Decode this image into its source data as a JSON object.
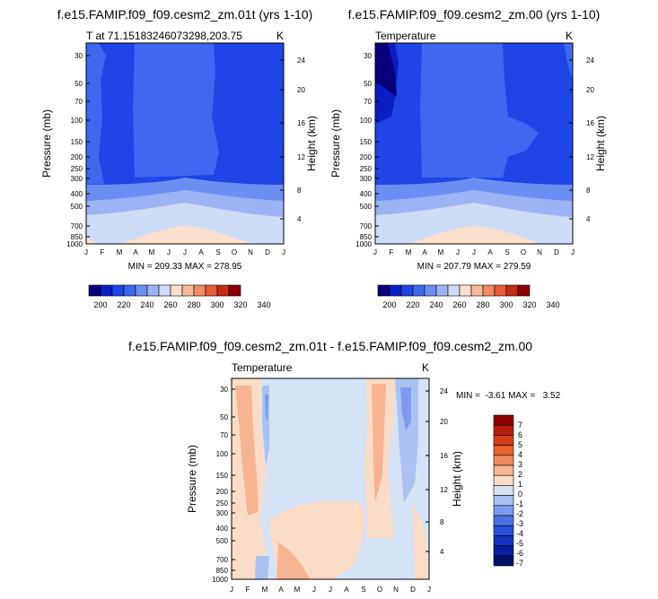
{
  "colors": {
    "palette13": [
      "#08007a",
      "#0a1ec4",
      "#1f45e6",
      "#3e68f0",
      "#6b8ef2",
      "#9cb3f5",
      "#cfdcf7",
      "#fbe1cd",
      "#f8b99a",
      "#f28a63",
      "#e85a3a",
      "#c82a18",
      "#8b0000"
    ],
    "diff_palette": [
      "#8b0000",
      "#b81d0d",
      "#d63d1c",
      "#e8622f",
      "#f08a5e",
      "#f6b492",
      "#fbdcc6",
      "#d6e3f7",
      "#aac2f2",
      "#7c9aee",
      "#4e72e6",
      "#2a4fdd",
      "#1433c6",
      "#071f9e",
      "#001068"
    ]
  },
  "chart_data": [
    {
      "type": "heatmap",
      "title": "f.e15.FAMIP.f09_f09.cesm2_zm.01t (yrs 1-10)",
      "left_label": "T at 71.1518324607329​8,203.75",
      "left_label_raw": "T at 71.15183246073298,203.75",
      "right_label": "K",
      "ylabel": "Pressure (mb)",
      "ylabel_right": "Height (km)",
      "x_ticks": [
        "J",
        "F",
        "M",
        "A",
        "M",
        "J",
        "J",
        "A",
        "S",
        "O",
        "N",
        "D",
        "J"
      ],
      "y_ticks": [
        30,
        50,
        70,
        100,
        150,
        200,
        250,
        300,
        400,
        500,
        700,
        850,
        1000
      ],
      "y_ticks_right": [
        24,
        20,
        16,
        12,
        8,
        4
      ],
      "ylim_mb": [
        1000,
        25
      ],
      "stats": "MIN = 209.33 MAX = 278.95",
      "stat_min": 209.33,
      "stat_max": 278.95,
      "levels": [
        200,
        220,
        240,
        260,
        280,
        300,
        320,
        340
      ],
      "legend_position": "bottom"
    },
    {
      "type": "heatmap",
      "title": "f.e15.FAMIP.f09_f09.cesm2_zm.00 (yrs 1-10)",
      "left_label": "Temperature",
      "right_label": "K",
      "ylabel": "Pressure (mb)",
      "ylabel_right": "Height (km)",
      "x_ticks": [
        "J",
        "F",
        "M",
        "A",
        "M",
        "J",
        "J",
        "A",
        "S",
        "O",
        "N",
        "D",
        "J"
      ],
      "y_ticks": [
        30,
        50,
        70,
        100,
        150,
        200,
        250,
        300,
        400,
        500,
        700,
        850,
        1000
      ],
      "y_ticks_right": [
        24,
        20,
        16,
        12,
        8,
        4
      ],
      "ylim_mb": [
        1000,
        25
      ],
      "stats": "MIN = 207.79 MAX = 279.59",
      "stat_min": 207.79,
      "stat_max": 279.59,
      "levels": [
        200,
        220,
        240,
        260,
        280,
        300,
        320,
        340
      ],
      "legend_position": "bottom"
    },
    {
      "type": "heatmap",
      "title": "f.e15.FAMIP.f09_f09.cesm2_zm.01t - f.e15.FAMIP.f09_f09.cesm2_zm.00",
      "left_label": "Temperature",
      "right_label": "K",
      "ylabel": "Pressure (mb)",
      "ylabel_right": "Height (km)",
      "x_ticks": [
        "J",
        "F",
        "M",
        "A",
        "M",
        "J",
        "J",
        "A",
        "S",
        "O",
        "N",
        "D",
        "J"
      ],
      "y_ticks": [
        30,
        50,
        70,
        100,
        150,
        200,
        250,
        300,
        400,
        500,
        700,
        850,
        1000
      ],
      "y_ticks_right": [
        24,
        20,
        16,
        12,
        8,
        4
      ],
      "ylim_mb": [
        1000,
        25
      ],
      "stats": "MIN =  -3.61 MAX =   3.52",
      "stat_min": -3.61,
      "stat_max": 3.52,
      "levels": [
        7,
        6,
        5,
        4,
        3,
        2,
        1,
        0,
        -1,
        -2,
        -3,
        -4,
        -5,
        -6,
        -7
      ],
      "legend_position": "right"
    }
  ]
}
